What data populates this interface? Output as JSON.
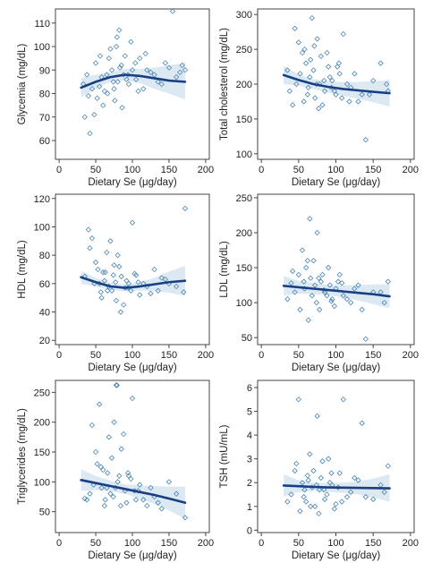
{
  "style": {
    "point_color": "#4a86b4",
    "fit_color": "#173f82",
    "band_color": "#c4d9ea",
    "axis_color": "#444444"
  },
  "chart_data": [
    {
      "type": "scatter",
      "id": "glycemia",
      "ylabel": "Glycemia (mg/dL)",
      "xlabel": "Dietary Se (μg/day)",
      "xlim": [
        -5,
        205
      ],
      "ylim": [
        52,
        116
      ],
      "xticks": [
        0,
        50,
        100,
        150,
        200
      ],
      "yticks": [
        60,
        70,
        80,
        90,
        100,
        110
      ],
      "grid": false,
      "fit": {
        "x": [
          30,
          50,
          70,
          90,
          110,
          130,
          150,
          172
        ],
        "y": [
          82.5,
          85,
          87,
          88,
          87.5,
          86.5,
          85.5,
          85
        ]
      },
      "ci_lower": [
        78.5,
        82,
        85,
        85.5,
        84.5,
        82,
        80,
        77.5
      ],
      "ci_upper": [
        86.5,
        88,
        89,
        90.5,
        90.5,
        91,
        92,
        93
      ],
      "points": {
        "x": [
          42,
          55,
          60,
          65,
          68,
          72,
          75,
          78,
          80,
          82,
          85,
          88,
          90,
          95,
          100,
          105,
          110,
          120,
          130,
          150,
          155,
          172,
          35,
          40,
          45,
          50,
          52,
          58,
          62,
          70,
          74,
          76,
          83,
          86,
          92,
          98,
          104,
          115,
          125,
          140,
          160,
          168,
          33,
          38,
          48,
          56,
          66,
          79,
          94,
          108,
          118,
          135,
          145,
          165
        ],
        "y": [
          63,
          83,
          75,
          88,
          95,
          90,
          82,
          100,
          85,
          107,
          92,
          88,
          96,
          84,
          90,
          86,
          95,
          90,
          88,
          91,
          115,
          90,
          70,
          79,
          82,
          93,
          78,
          87,
          81,
          99,
          85,
          77,
          91,
          74,
          86,
          102,
          93,
          82,
          89,
          84,
          87,
          92,
          84,
          88,
          71,
          96,
          80,
          104,
          88,
          81,
          97,
          85,
          93,
          89
        ]
      }
    },
    {
      "type": "scatter",
      "id": "total-cholesterol",
      "ylabel": "Total cholesterol (mg/dL)",
      "xlabel": "Dietary Se (μg/day)",
      "xlim": [
        -5,
        205
      ],
      "ylim": [
        92,
        308
      ],
      "xticks": [
        0,
        50,
        100,
        150,
        200
      ],
      "yticks": [
        100,
        150,
        200,
        250,
        300
      ],
      "grid": false,
      "fit": {
        "x": [
          30,
          50,
          70,
          90,
          110,
          130,
          150,
          172
        ],
        "y": [
          213,
          206,
          200,
          196,
          193,
          191,
          189,
          187
        ]
      },
      "ci_lower": [
        200,
        198,
        193,
        188,
        183,
        179,
        174,
        168
      ],
      "ci_upper": [
        226,
        214,
        207,
        204,
        203,
        203,
        204,
        206
      ],
      "points": {
        "x": [
          45,
          50,
          55,
          60,
          65,
          68,
          70,
          72,
          75,
          78,
          80,
          85,
          90,
          95,
          100,
          105,
          110,
          120,
          130,
          140,
          160,
          168,
          38,
          42,
          52,
          58,
          62,
          66,
          74,
          82,
          88,
          92,
          98,
          102,
          108,
          115,
          125,
          135,
          150,
          170,
          35,
          47,
          57,
          63,
          71,
          77,
          84,
          94,
          104,
          118,
          145
        ],
        "y": [
          280,
          260,
          245,
          230,
          210,
          295,
          220,
          180,
          265,
          200,
          240,
          190,
          225,
          205,
          185,
          215,
          272,
          195,
          175,
          120,
          230,
          200,
          190,
          170,
          215,
          250,
          185,
          235,
          200,
          170,
          245,
          210,
          190,
          225,
          180,
          200,
          215,
          185,
          205,
          190,
          220,
          200,
          175,
          195,
          255,
          165,
          205,
          195,
          230,
          175,
          185
        ]
      }
    },
    {
      "type": "scatter",
      "id": "hdl",
      "ylabel": "HDL (mg/dL)",
      "xlabel": "Dietary Se (μg/day)",
      "xlim": [
        -5,
        205
      ],
      "ylim": [
        17,
        123
      ],
      "xticks": [
        0,
        50,
        100,
        150,
        200
      ],
      "yticks": [
        20,
        40,
        60,
        80,
        100,
        120
      ],
      "grid": false,
      "fit": {
        "x": [
          30,
          50,
          70,
          90,
          110,
          130,
          150,
          172
        ],
        "y": [
          64.5,
          61,
          58,
          57,
          58,
          59.5,
          61,
          62
        ]
      },
      "ci_lower": [
        60,
        58,
        55.5,
        54.5,
        55,
        55,
        53.5,
        51.5
      ],
      "ci_upper": [
        69,
        64,
        60.5,
        59.5,
        61,
        64,
        68.5,
        72.5
      ],
      "points": {
        "x": [
          40,
          45,
          50,
          55,
          60,
          65,
          68,
          70,
          72,
          75,
          78,
          80,
          85,
          90,
          95,
          100,
          105,
          110,
          120,
          130,
          150,
          170,
          172,
          35,
          48,
          53,
          58,
          62,
          66,
          74,
          82,
          88,
          92,
          98,
          103,
          115,
          125,
          140,
          160,
          42,
          57,
          63,
          77,
          84,
          94,
          108,
          135,
          145
        ],
        "y": [
          98,
          92,
          75,
          60,
          68,
          82,
          58,
          90,
          55,
          73,
          48,
          80,
          65,
          57,
          60,
          103,
          66,
          52,
          58,
          70,
          60,
          54,
          113,
          65,
          60,
          70,
          50,
          62,
          55,
          66,
          72,
          45,
          62,
          55,
          67,
          60,
          53,
          64,
          58,
          85,
          54,
          68,
          61,
          40,
          57,
          61,
          55,
          63
        ]
      }
    },
    {
      "type": "scatter",
      "id": "ldl",
      "ylabel": "LDL (mg/dL)",
      "xlabel": "Dietary Se (μg/day)",
      "xlim": [
        -5,
        205
      ],
      "ylim": [
        40,
        255
      ],
      "xticks": [
        0,
        50,
        100,
        150,
        200
      ],
      "yticks": [
        50,
        100,
        150,
        200,
        250
      ],
      "grid": false,
      "fit": {
        "x": [
          30,
          50,
          70,
          90,
          110,
          130,
          150,
          172
        ],
        "y": [
          124,
          122,
          120,
          118,
          116,
          114,
          112,
          109
        ]
      },
      "ci_lower": [
        110,
        113,
        112,
        111,
        107,
        103,
        98,
        92
      ],
      "ci_upper": [
        138,
        131,
        128,
        125,
        125,
        125,
        126,
        126
      ],
      "points": {
        "x": [
          40,
          50,
          55,
          60,
          65,
          68,
          70,
          72,
          75,
          78,
          80,
          85,
          90,
          95,
          100,
          105,
          110,
          120,
          130,
          140,
          160,
          170,
          35,
          45,
          52,
          58,
          62,
          66,
          74,
          82,
          88,
          92,
          98,
          103,
          115,
          125,
          150,
          165,
          42,
          57,
          63,
          77,
          84,
          94,
          108,
          135
        ],
        "y": [
          128,
          140,
          175,
          150,
          220,
          110,
          160,
          125,
          200,
          90,
          130,
          115,
          150,
          105,
          120,
          140,
          110,
          100,
          125,
          48,
          115,
          130,
          105,
          115,
          90,
          120,
          160,
          135,
          100,
          140,
          110,
          125,
          95,
          130,
          105,
          120,
          115,
          100,
          145,
          130,
          75,
          135,
          118,
          102,
          128,
          90
        ]
      }
    },
    {
      "type": "scatter",
      "id": "triglycerides",
      "ylabel": "Triglycerides (mg/dL)",
      "xlabel": "Dietary Se (μg/day)",
      "xlim": [
        -5,
        205
      ],
      "ylim": [
        15,
        270
      ],
      "xticks": [
        0,
        50,
        100,
        150,
        200
      ],
      "yticks": [
        50,
        100,
        150,
        200,
        250
      ],
      "grid": false,
      "fit": {
        "x": [
          30,
          50,
          70,
          90,
          110,
          130,
          150,
          172
        ],
        "y": [
          103,
          98,
          93,
          88,
          83,
          78,
          72,
          65
        ]
      },
      "ci_lower": [
        85,
        86,
        84,
        80,
        72,
        63,
        52,
        38
      ],
      "ci_upper": [
        121,
        110,
        102,
        96,
        94,
        93,
        92,
        92
      ],
      "points": {
        "x": [
          38,
          45,
          50,
          55,
          60,
          65,
          68,
          70,
          72,
          75,
          78,
          80,
          85,
          90,
          95,
          100,
          105,
          110,
          120,
          130,
          150,
          172,
          35,
          42,
          52,
          58,
          62,
          66,
          74,
          82,
          88,
          92,
          98,
          103,
          115,
          125,
          140,
          160,
          47,
          57,
          63,
          77,
          79,
          84,
          94,
          108,
          135
        ],
        "y": [
          70,
          195,
          150,
          230,
          120,
          90,
          175,
          80,
          140,
          200,
          262,
          100,
          155,
          85,
          110,
          240,
          70,
          95,
          60,
          75,
          100,
          40,
          72,
          80,
          130,
          90,
          60,
          115,
          75,
          110,
          180,
          65,
          105,
          85,
          70,
          90,
          55,
          80,
          95,
          125,
          70,
          90,
          262,
          60,
          115,
          85,
          65
        ]
      }
    },
    {
      "type": "scatter",
      "id": "tsh",
      "ylabel": "TSH (mU/mL)",
      "xlabel": "Dietary Se (μg/day)",
      "xlim": [
        -5,
        205
      ],
      "ylim": [
        -0.1,
        6.3
      ],
      "xticks": [
        0,
        50,
        100,
        150,
        200
      ],
      "yticks": [
        0,
        1,
        2,
        3,
        4,
        5,
        6
      ],
      "grid": false,
      "fit": {
        "x": [
          30,
          50,
          70,
          90,
          110,
          130,
          150,
          172
        ],
        "y": [
          1.88,
          1.85,
          1.82,
          1.8,
          1.79,
          1.78,
          1.77,
          1.76
        ]
      },
      "ci_lower": [
        1.42,
        1.6,
        1.65,
        1.62,
        1.57,
        1.5,
        1.38,
        1.2
      ],
      "ci_upper": [
        2.35,
        2.1,
        2.0,
        1.98,
        2.0,
        2.05,
        2.17,
        2.35
      ],
      "points": {
        "x": [
          40,
          50,
          55,
          60,
          65,
          68,
          70,
          72,
          75,
          78,
          80,
          85,
          90,
          95,
          100,
          105,
          110,
          120,
          130,
          140,
          160,
          170,
          35,
          45,
          52,
          58,
          62,
          66,
          74,
          82,
          88,
          92,
          98,
          103,
          115,
          125,
          150,
          165,
          47,
          57,
          63,
          77,
          84,
          94,
          108,
          135
        ],
        "y": [
          1.5,
          5.5,
          2.0,
          1.2,
          3.2,
          1.8,
          2.5,
          1.0,
          4.8,
          1.7,
          2.2,
          1.3,
          3.0,
          1.9,
          1.1,
          2.4,
          5.5,
          1.6,
          2.1,
          1.4,
          1.9,
          2.7,
          1.2,
          2.5,
          0.8,
          1.7,
          2.3,
          1.0,
          1.9,
          2.9,
          1.5,
          2.0,
          0.9,
          1.8,
          1.4,
          2.2,
          1.3,
          1.6,
          2.8,
          1.4,
          2.1,
          0.7,
          1.7,
          2.4,
          1.2,
          4.5
        ]
      }
    }
  ]
}
